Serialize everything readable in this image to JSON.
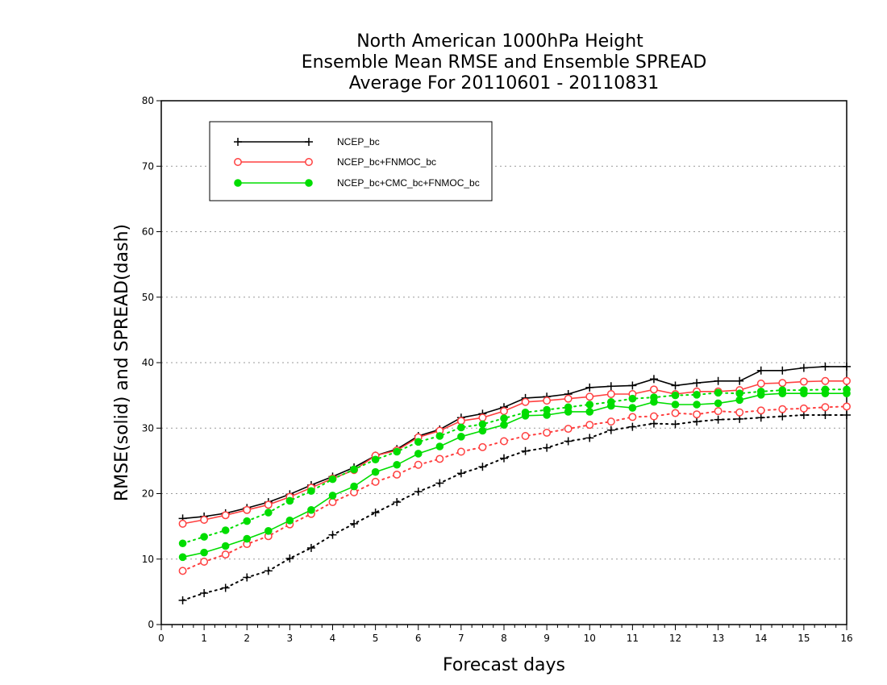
{
  "chart_data": {
    "type": "line",
    "title": "North American 1000hPa Height",
    "subtitle": "Ensemble Mean RMSE and Ensemble SPREAD",
    "period": "Average For 20110601 - 20110831",
    "xlabel": "Forecast days",
    "ylabel": "RMSE(solid) and SPREAD(dash)",
    "xlim": [
      0,
      16
    ],
    "ylim": [
      0,
      80
    ],
    "xticks": [
      0,
      1,
      2,
      3,
      4,
      5,
      6,
      7,
      8,
      9,
      10,
      11,
      12,
      13,
      14,
      15,
      16
    ],
    "yticks": [
      0,
      10,
      20,
      30,
      40,
      50,
      60,
      70,
      80
    ],
    "grid": "horizontal dotted",
    "legend_position": "top-left",
    "x": [
      0.5,
      1,
      1.5,
      2,
      2.5,
      3,
      3.5,
      4,
      4.5,
      5,
      5.5,
      6,
      6.5,
      7,
      7.5,
      8,
      8.5,
      9,
      9.5,
      10,
      10.5,
      11,
      11.5,
      12,
      12.5,
      13,
      13.5,
      14,
      14.5,
      15,
      15.5,
      16
    ],
    "series": [
      {
        "name": "NCEP_bc",
        "color": "#000000",
        "marker": "plus",
        "rmse": [
          16.2,
          16.5,
          17.0,
          17.8,
          18.7,
          19.9,
          21.3,
          22.6,
          24.0,
          25.8,
          26.8,
          28.8,
          29.8,
          31.6,
          32.2,
          33.2,
          34.6,
          34.8,
          35.2,
          36.2,
          36.4,
          36.5,
          37.5,
          36.5,
          36.9,
          37.2,
          37.2,
          38.8,
          38.8,
          39.2,
          39.4,
          39.4
        ],
        "spread": [
          3.7,
          4.8,
          5.6,
          7.2,
          8.2,
          10.1,
          11.7,
          13.7,
          15.4,
          17.1,
          18.7,
          20.3,
          21.6,
          23.1,
          24.1,
          25.4,
          26.5,
          27.0,
          28.0,
          28.5,
          29.7,
          30.2,
          30.7,
          30.6,
          31.0,
          31.3,
          31.4,
          31.6,
          31.8,
          32.0,
          32.0,
          32.0
        ]
      },
      {
        "name": "NCEP_bc+FNMOC_bc",
        "color": "#ff4040",
        "marker": "open-circle",
        "rmse": [
          15.4,
          16.0,
          16.7,
          17.5,
          18.3,
          19.5,
          20.9,
          22.3,
          23.6,
          25.8,
          26.6,
          28.6,
          29.6,
          31.1,
          31.6,
          32.6,
          34.0,
          34.2,
          34.5,
          34.8,
          35.2,
          35.2,
          35.9,
          35.2,
          35.6,
          35.6,
          35.8,
          36.8,
          36.9,
          37.1,
          37.2,
          37.2
        ],
        "spread": [
          8.2,
          9.6,
          10.7,
          12.3,
          13.5,
          15.3,
          16.9,
          18.7,
          20.2,
          21.8,
          22.9,
          24.4,
          25.3,
          26.4,
          27.1,
          28.0,
          28.8,
          29.3,
          29.9,
          30.5,
          31.0,
          31.7,
          31.8,
          32.3,
          32.1,
          32.6,
          32.4,
          32.7,
          32.9,
          33.0,
          33.2,
          33.3
        ]
      },
      {
        "name": "NCEP_bc+CMC_bc+FNMOC_bc",
        "color": "#00dd00",
        "marker": "filled-circle",
        "rmse": [
          10.3,
          11.0,
          12.0,
          13.1,
          14.3,
          15.9,
          17.5,
          19.7,
          21.1,
          23.3,
          24.4,
          26.1,
          27.2,
          28.7,
          29.6,
          30.5,
          31.9,
          32.0,
          32.5,
          32.5,
          33.4,
          33.1,
          34.0,
          33.6,
          33.6,
          33.8,
          34.3,
          35.1,
          35.3,
          35.3,
          35.3,
          35.3
        ],
        "spread": [
          12.4,
          13.4,
          14.4,
          15.8,
          17.1,
          18.9,
          20.4,
          22.2,
          23.7,
          25.2,
          26.4,
          27.9,
          28.8,
          30.1,
          30.6,
          31.5,
          32.4,
          32.8,
          33.2,
          33.6,
          34.0,
          34.5,
          34.7,
          35.0,
          35.1,
          35.4,
          35.3,
          35.6,
          35.8,
          35.8,
          35.9,
          35.9
        ]
      }
    ]
  }
}
